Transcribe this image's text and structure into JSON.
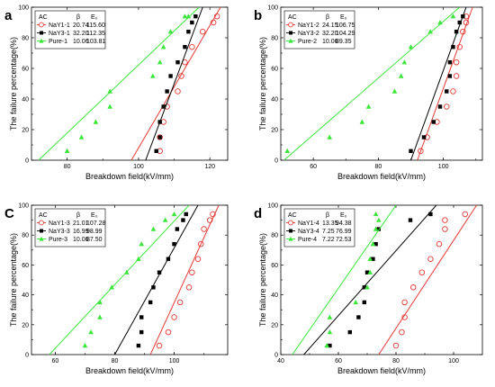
{
  "chart_data": [
    {
      "type": "scatter",
      "panel_label": "a",
      "xlabel": "Breakdown field(kV/mm)",
      "ylabel": "The failure percentage(%)",
      "xlim": [
        70,
        125
      ],
      "xticks": [
        80,
        100,
        120
      ],
      "ylim": [
        0,
        100
      ],
      "yticks": [
        0,
        20,
        40,
        60,
        80,
        100
      ],
      "legend_location": "top-left",
      "legend_header": {
        "col1": "AC",
        "col2": "β",
        "col3": "E₀"
      },
      "series": [
        {
          "name": "NaY1-1",
          "beta": "20.74",
          "e0": "115.60",
          "marker": "open-circle",
          "color": "#e53935",
          "x": [
            106,
            106,
            107,
            108,
            111,
            112,
            113,
            115,
            118,
            121,
            122
          ],
          "y": [
            6,
            15,
            25,
            35,
            45,
            55,
            64,
            74,
            84,
            90,
            94
          ],
          "fit": [
            [
              98,
              0
            ],
            [
              123,
              100
            ]
          ]
        },
        {
          "name": "NaY3-1",
          "beta": "32.20",
          "e0": "112.35",
          "marker": "square",
          "color": "#000000",
          "x": [
            105,
            106,
            106,
            107,
            108,
            109,
            111,
            113,
            114,
            115,
            116
          ],
          "y": [
            6,
            15,
            25,
            35,
            45,
            55,
            64,
            74,
            84,
            90,
            94
          ],
          "fit": [
            [
              102,
              0
            ],
            [
              118,
              100
            ]
          ]
        },
        {
          "name": "Pure-1",
          "beta": "10.06",
          "e0": "103.81",
          "marker": "triangle",
          "color": "#39e639",
          "x": [
            80,
            84,
            88,
            92,
            92,
            104,
            106,
            107,
            109,
            113,
            114
          ],
          "y": [
            6,
            15,
            25,
            35,
            45,
            55,
            64,
            74,
            84,
            94,
            94
          ],
          "fit": [
            [
              72,
              0
            ],
            [
              117,
              100
            ]
          ]
        }
      ]
    },
    {
      "type": "scatter",
      "panel_label": "b",
      "xlabel": "Breakdown field(kV/mm)",
      "ylabel": "The failure percentage(%)",
      "xlim": [
        50,
        112
      ],
      "xticks": [
        60,
        80,
        100
      ],
      "ylim": [
        0,
        100
      ],
      "yticks": [
        0,
        20,
        40,
        60,
        80,
        100
      ],
      "legend_location": "top-left",
      "legend_header": {
        "col1": "AC",
        "col2": "β",
        "col3": "E₀"
      },
      "series": [
        {
          "name": "NaY1-2",
          "beta": "24.15",
          "e0": "106.75",
          "marker": "open-circle",
          "color": "#e53935",
          "x": [
            93,
            95,
            98,
            101,
            103,
            104,
            104,
            105,
            106,
            107,
            107
          ],
          "y": [
            6,
            15,
            25,
            35,
            45,
            55,
            64,
            74,
            84,
            90,
            94
          ],
          "fit": [
            [
              92,
              0
            ],
            [
              109,
              100
            ]
          ]
        },
        {
          "name": "NaY3-2",
          "beta": "32.20",
          "e0": "104.29",
          "marker": "square",
          "color": "#000000",
          "x": [
            90,
            94,
            97,
            99,
            101,
            102,
            102,
            103,
            104,
            105,
            106
          ],
          "y": [
            6,
            15,
            25,
            35,
            45,
            55,
            64,
            74,
            84,
            90,
            94
          ],
          "fit": [
            [
              90,
              0
            ],
            [
              107,
              100
            ]
          ]
        },
        {
          "name": "Pure-2",
          "beta": "10.06",
          "e0": "89.35",
          "marker": "triangle",
          "color": "#39e639",
          "x": [
            52,
            65,
            75,
            77,
            85,
            87,
            88,
            90,
            96,
            99,
            103
          ],
          "y": [
            6,
            15,
            25,
            35,
            45,
            55,
            64,
            74,
            84,
            90,
            94
          ],
          "fit": [
            [
              51,
              0
            ],
            [
              105,
              100
            ]
          ]
        }
      ]
    },
    {
      "type": "scatter",
      "panel_label": "C",
      "xlabel": "Breakdown field(kV/mm)",
      "ylabel": "The failure percentage(%)",
      "xlim": [
        52,
        118
      ],
      "xticks": [
        60,
        80,
        100
      ],
      "ylim": [
        0,
        100
      ],
      "yticks": [
        0,
        20,
        40,
        60,
        80,
        100
      ],
      "legend_location": "top-left",
      "legend_header": {
        "col1": "AC",
        "col2": "β",
        "col3": "E₀"
      },
      "series": [
        {
          "name": "NaY1-3",
          "beta": "21.01",
          "e0": "107.28",
          "marker": "open-circle",
          "color": "#e53935",
          "x": [
            95,
            98,
            100,
            102,
            105,
            106,
            108,
            109,
            110,
            112,
            113
          ],
          "y": [
            6,
            15,
            25,
            35,
            45,
            55,
            64,
            74,
            84,
            90,
            94
          ],
          "fit": [
            [
              92,
              0
            ],
            [
              115,
              100
            ]
          ]
        },
        {
          "name": "NaY3-3",
          "beta": "16.99",
          "e0": "98.99",
          "marker": "square",
          "color": "#000000",
          "x": [
            88,
            89,
            89,
            92,
            93,
            95,
            98,
            100,
            101,
            103,
            104
          ],
          "y": [
            6,
            15,
            25,
            35,
            45,
            55,
            64,
            74,
            84,
            90,
            94
          ],
          "fit": [
            [
              80,
              0
            ],
            [
              108,
              100
            ]
          ]
        },
        {
          "name": "Pure-3",
          "beta": "10.06",
          "e0": "87.50",
          "marker": "triangle",
          "color": "#39e639",
          "x": [
            70,
            72,
            75,
            75,
            79,
            84,
            88,
            89,
            93,
            97,
            100
          ],
          "y": [
            6,
            15,
            25,
            35,
            45,
            55,
            64,
            74,
            84,
            90,
            94
          ],
          "fit": [
            [
              58,
              0
            ],
            [
              105,
              100
            ]
          ]
        }
      ]
    },
    {
      "type": "scatter",
      "panel_label": "d",
      "xlabel": "Breakdown field(kV/mm)",
      "ylabel": "The failure percentage(%)",
      "xlim": [
        40,
        110
      ],
      "xticks": [
        40,
        60,
        80,
        100
      ],
      "ylim": [
        0,
        100
      ],
      "yticks": [
        0,
        20,
        40,
        60,
        80,
        100
      ],
      "legend_location": "top-left",
      "legend_header": {
        "col1": "AC",
        "col2": "β",
        "col3": "E₀"
      },
      "series": [
        {
          "name": "NaY1-4",
          "beta": "13.35",
          "e0": "94.38",
          "marker": "open-circle",
          "color": "#e53935",
          "x": [
            80,
            82,
            83,
            83,
            86,
            89,
            92,
            95,
            97,
            97,
            104
          ],
          "y": [
            6,
            15,
            25,
            35,
            45,
            55,
            64,
            74,
            84,
            90,
            94
          ],
          "fit": [
            [
              74,
              0
            ],
            [
              108,
              100
            ]
          ]
        },
        {
          "name": "NaY3-4",
          "beta": "7.25",
          "e0": "76.99",
          "marker": "square",
          "color": "#000000",
          "x": [
            57,
            64,
            67,
            69,
            69,
            70,
            72,
            73,
            74,
            85,
            92
          ],
          "y": [
            6,
            15,
            25,
            35,
            45,
            55,
            64,
            74,
            84,
            90,
            94
          ],
          "fit": [
            [
              48,
              0
            ],
            [
              94,
              100
            ]
          ]
        },
        {
          "name": "Pure-4",
          "beta": "7.22",
          "e0": "72.53",
          "marker": "triangle",
          "color": "#39e639",
          "x": [
            56,
            57,
            57,
            66,
            70,
            71,
            71,
            72,
            73,
            74,
            73
          ],
          "y": [
            6,
            15,
            25,
            35,
            45,
            55,
            64,
            74,
            84,
            90,
            94
          ],
          "fit": [
            [
              44,
              0
            ],
            [
              80,
              100
            ]
          ]
        }
      ]
    }
  ]
}
